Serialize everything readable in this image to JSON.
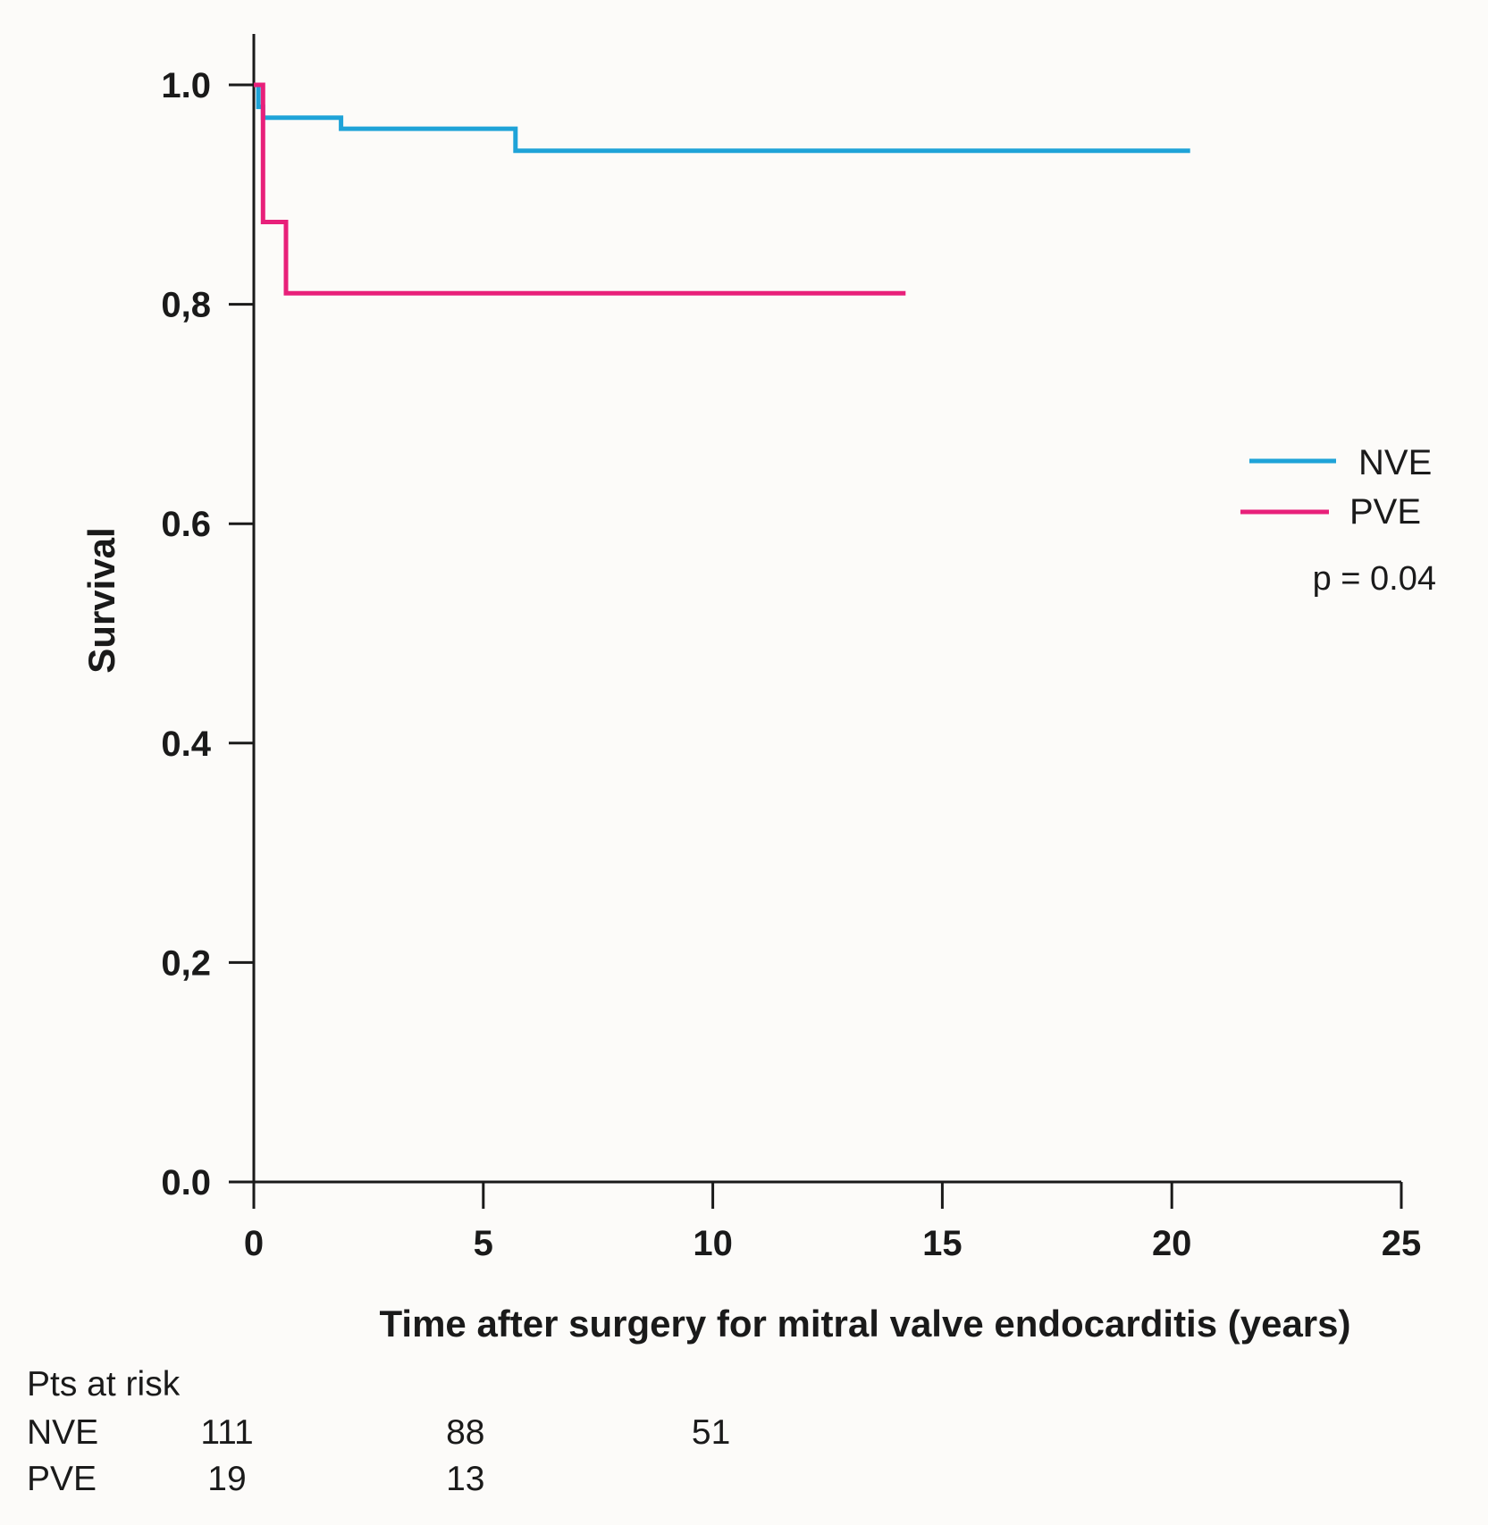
{
  "chart_data": {
    "type": "line",
    "subtype": "kaplan-meier",
    "xlabel": "Time after surgery for mitral valve endocarditis (years)",
    "ylabel": "Survival",
    "xlim": [
      0,
      25
    ],
    "ylim": [
      0,
      1
    ],
    "x_ticks": [
      0,
      5,
      10,
      15,
      20,
      25
    ],
    "x_tick_labels": [
      "0",
      "5",
      "10",
      "15",
      "20",
      "25"
    ],
    "y_ticks": [
      0.0,
      0.2,
      0.4,
      0.6,
      0.8,
      1.0
    ],
    "y_tick_labels": [
      "0.0",
      "0,2",
      "0.4",
      "0.6",
      "0,8",
      "1.0"
    ],
    "legend_position": "right",
    "series": [
      {
        "name": "NVE",
        "color": "#1fa3d8",
        "x": [
          0,
          0.1,
          0.1,
          0.2,
          0.2,
          1.9,
          1.9,
          5.7,
          5.7,
          20.4
        ],
        "y": [
          1.0,
          1.0,
          0.98,
          0.98,
          0.97,
          0.97,
          0.96,
          0.96,
          0.94,
          0.94
        ]
      },
      {
        "name": "PVE",
        "color": "#e8207a",
        "x": [
          0,
          0.2,
          0.2,
          0.7,
          0.7,
          14.2
        ],
        "y": [
          1.0,
          1.0,
          0.875,
          0.875,
          0.81,
          0.81
        ]
      }
    ],
    "annotation": "p = 0.04",
    "risk_table": {
      "title": "Pts at risk",
      "rows": [
        {
          "name": "NVE",
          "values": [
            {
              "t": 0,
              "n": "111"
            },
            {
              "t": 5,
              "n": "88"
            },
            {
              "t": 10,
              "n": "51"
            }
          ]
        },
        {
          "name": "PVE",
          "values": [
            {
              "t": 0,
              "n": "19"
            },
            {
              "t": 5,
              "n": "13"
            }
          ]
        }
      ]
    }
  }
}
